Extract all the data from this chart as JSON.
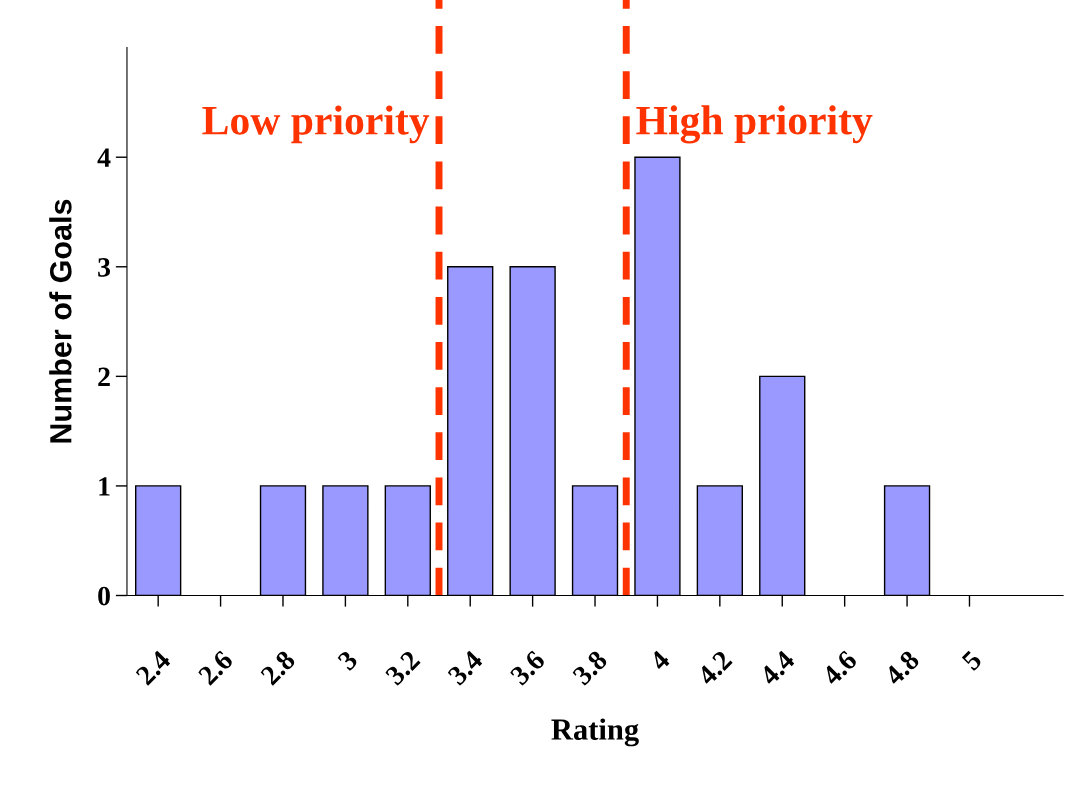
{
  "chart_data": {
    "type": "bar",
    "xlabel": "Rating",
    "ylabel": "Number of Goals",
    "x": [
      2.4,
      2.6,
      2.8,
      3,
      3.2,
      3.4,
      3.6,
      3.8,
      4,
      4.2,
      4.4,
      4.6,
      4.8,
      5,
      5.2
    ],
    "values": [
      1,
      0,
      1,
      1,
      1,
      3,
      3,
      1,
      4,
      1,
      2,
      0,
      1,
      0,
      0
    ],
    "color": "#9999ff",
    "xlim": [
      2.3,
      5.3
    ],
    "ylim": [
      0,
      5
    ],
    "xticks": [
      2.4,
      2.6,
      2.8,
      3,
      3.2,
      3.4,
      3.6,
      3.8,
      4,
      4.2,
      4.4,
      4.6,
      4.8,
      5
    ],
    "yticks": [
      0,
      1,
      2,
      3,
      4
    ],
    "ref_lines": [
      {
        "axis": "x",
        "value": 3.3,
        "label": "Low priority",
        "color": "#ff3300",
        "line_style": "dashed"
      },
      {
        "axis": "x",
        "value": 3.9,
        "label": "High priority",
        "color": "#ff3300",
        "line_style": "dashed"
      }
    ]
  }
}
